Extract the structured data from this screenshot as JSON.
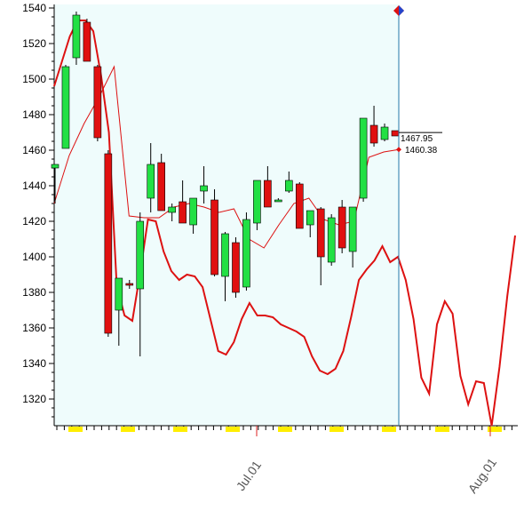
{
  "chart_data": {
    "type": "candlestick",
    "title": "",
    "xlabel": "",
    "ylabel": "",
    "ylim": [
      1305,
      1542
    ],
    "y_ticks": [
      1320,
      1340,
      1360,
      1380,
      1400,
      1420,
      1440,
      1460,
      1480,
      1500,
      1520,
      1540
    ],
    "x_tick_labels": [
      "Jul.01",
      "Aug.01"
    ],
    "grid": false,
    "colors": {
      "up": "#22e044",
      "down": "#e01010",
      "history_background": "#effcfc",
      "line": "#dd1111",
      "cursor": "#2277aa",
      "marker": "#ffee00"
    },
    "candles": [
      {
        "o": 1450,
        "h": 1452,
        "l": 1430,
        "c": 1452
      },
      {
        "o": 1461,
        "h": 1508,
        "l": 1461,
        "c": 1507
      },
      {
        "o": 1512,
        "h": 1538,
        "l": 1508,
        "c": 1536
      },
      {
        "o": 1532,
        "h": 1534,
        "l": 1510,
        "c": 1510
      },
      {
        "o": 1507,
        "h": 1508,
        "l": 1465,
        "c": 1467
      },
      {
        "o": 1458,
        "h": 1460,
        "l": 1355,
        "c": 1357
      },
      {
        "o": 1370,
        "h": 1388,
        "l": 1350,
        "c": 1388
      },
      {
        "o": 1385,
        "h": 1387,
        "l": 1382,
        "c": 1384
      },
      {
        "o": 1382,
        "h": 1425,
        "l": 1344,
        "c": 1420
      },
      {
        "o": 1433,
        "h": 1464,
        "l": 1425,
        "c": 1452
      },
      {
        "o": 1453,
        "h": 1458,
        "l": 1426,
        "c": 1426
      },
      {
        "o": 1425,
        "h": 1430,
        "l": 1420,
        "c": 1428
      },
      {
        "o": 1431,
        "h": 1443,
        "l": 1419,
        "c": 1419
      },
      {
        "o": 1418,
        "h": 1433,
        "l": 1413,
        "c": 1433
      },
      {
        "o": 1437,
        "h": 1451,
        "l": 1430,
        "c": 1440
      },
      {
        "o": 1432,
        "h": 1438,
        "l": 1389,
        "c": 1390
      },
      {
        "o": 1389,
        "h": 1414,
        "l": 1375,
        "c": 1413
      },
      {
        "o": 1408,
        "h": 1411,
        "l": 1377,
        "c": 1380
      },
      {
        "o": 1383,
        "h": 1425,
        "l": 1381,
        "c": 1421
      },
      {
        "o": 1419,
        "h": 1443,
        "l": 1415,
        "c": 1443
      },
      {
        "o": 1443,
        "h": 1451,
        "l": 1428,
        "c": 1428
      },
      {
        "o": 1432,
        "h": 1433,
        "l": 1431,
        "c": 1432
      },
      {
        "o": 1437,
        "h": 1448,
        "l": 1436,
        "c": 1443
      },
      {
        "o": 1441,
        "h": 1442,
        "l": 1416,
        "c": 1416
      },
      {
        "o": 1418,
        "h": 1426,
        "l": 1411,
        "c": 1426
      },
      {
        "o": 1427,
        "h": 1428,
        "l": 1384,
        "c": 1400
      },
      {
        "o": 1397,
        "h": 1424,
        "l": 1395,
        "c": 1422
      },
      {
        "o": 1428,
        "h": 1432,
        "l": 1402,
        "c": 1405
      },
      {
        "o": 1403,
        "h": 1428,
        "l": 1394,
        "c": 1428
      },
      {
        "o": 1433,
        "h": 1478,
        "l": 1431,
        "c": 1478
      },
      {
        "o": 1474,
        "h": 1485,
        "l": 1462,
        "c": 1464
      },
      {
        "o": 1466,
        "h": 1475,
        "l": 1465,
        "c": 1473
      },
      {
        "o": 1471,
        "h": 1471,
        "l": 1468,
        "c": 1468
      }
    ],
    "thin_line": [
      1430,
      1457,
      1475,
      1490,
      1507,
      1423,
      1422,
      1422,
      1428,
      1430,
      1428,
      1425,
      1427,
      1410,
      1405,
      1418,
      1430,
      1433,
      1421,
      1418,
      1420,
      1456,
      1459,
      1460.38
    ],
    "thick_line": [
      1496,
      1510,
      1524,
      1533,
      1533,
      1527,
      1502,
      1470,
      1384,
      1367,
      1364,
      1391,
      1421,
      1420,
      1403,
      1392,
      1387,
      1390,
      1389,
      1383,
      1365,
      1347,
      1345,
      1352,
      1365,
      1374,
      1367,
      1367,
      1366,
      1362,
      1360,
      1358,
      1355,
      1344,
      1336,
      1334,
      1337,
      1347,
      1366,
      1387,
      1393,
      1398,
      1406,
      1397,
      1400,
      1387,
      1365,
      1332,
      1323,
      1362,
      1375,
      1368,
      1333,
      1317,
      1330,
      1329,
      1305,
      1338,
      1378,
      1412
    ],
    "last_value_labels": [
      {
        "label": "1467.95",
        "value": 1467.95
      },
      {
        "label": "1460.38",
        "value": 1460.38
      }
    ]
  }
}
